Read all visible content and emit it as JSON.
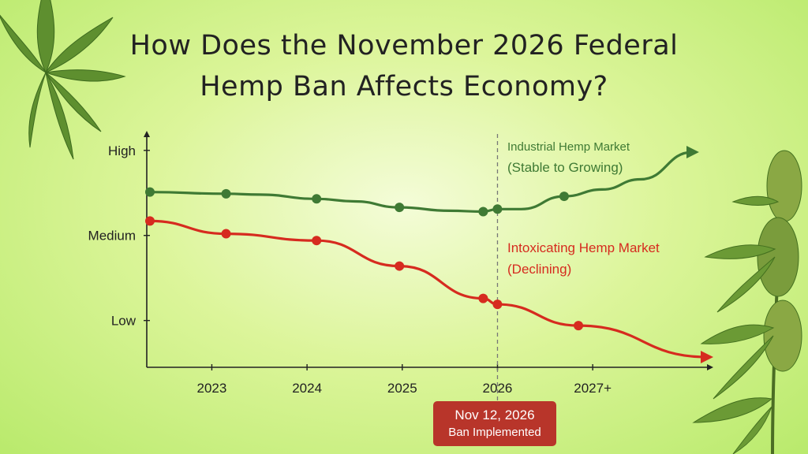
{
  "title_lines": [
    "How Does the November 2026 Federal",
    "Hemp Ban Affects Economy?"
  ],
  "annotation": {
    "date": "Nov 12, 2026",
    "label": "Ban Implemented"
  },
  "colors": {
    "industrial": "#3f7a34",
    "intoxicating": "#d62b1f",
    "axis": "#222222",
    "leaf": "#5e8f2f"
  },
  "decorations": [
    "hemp-leaf-icon",
    "hemp-plant-icon"
  ],
  "chart_data": {
    "type": "line",
    "title": "How Does the November 2026 Federal Hemp Ban Affects Economy?",
    "xlabel": "",
    "ylabel": "",
    "x_ticks": [
      "2023",
      "2024",
      "2025",
      "2026",
      "2027+"
    ],
    "x_tick_values": [
      2023,
      2024,
      2025,
      2026,
      2027
    ],
    "xlim": [
      2022.35,
      2028.25
    ],
    "y_ticks": [
      "High",
      "Medium",
      "Low"
    ],
    "y_tick_values": [
      3,
      2,
      1
    ],
    "ylim": [
      0.45,
      3.1
    ],
    "ban_x": 2026,
    "series": [
      {
        "name": "Industrial Hemp Market",
        "sublabel": "(Stable to Growing)",
        "color": "#3f7a34",
        "trend": "Stable to Growing",
        "x": [
          2022.35,
          2023.15,
          2023.5,
          2024.1,
          2024.5,
          2024.97,
          2025.5,
          2025.85,
          2026.0,
          2026.25,
          2026.7,
          2027.1,
          2027.5,
          2028.05
        ],
        "y": [
          2.51,
          2.49,
          2.48,
          2.43,
          2.4,
          2.33,
          2.29,
          2.28,
          2.31,
          2.31,
          2.46,
          2.54,
          2.66,
          2.98
        ],
        "markers": [
          {
            "x": 2022.35,
            "y": 2.51
          },
          {
            "x": 2023.15,
            "y": 2.49
          },
          {
            "x": 2024.1,
            "y": 2.43
          },
          {
            "x": 2024.97,
            "y": 2.33
          },
          {
            "x": 2025.85,
            "y": 2.28
          },
          {
            "x": 2026.0,
            "y": 2.31
          },
          {
            "x": 2026.7,
            "y": 2.46
          }
        ]
      },
      {
        "name": "Intoxicating Hemp Market",
        "sublabel": "(Declining)",
        "color": "#d62b1f",
        "trend": "Declining",
        "x": [
          2022.35,
          2023.15,
          2024.1,
          2024.97,
          2025.85,
          2026.0,
          2026.85,
          2028.2
        ],
        "y": [
          2.17,
          2.02,
          1.94,
          1.64,
          1.26,
          1.19,
          0.94,
          0.57
        ],
        "markers": [
          {
            "x": 2022.35,
            "y": 2.17
          },
          {
            "x": 2023.15,
            "y": 2.02
          },
          {
            "x": 2024.1,
            "y": 1.94
          },
          {
            "x": 2024.97,
            "y": 1.64
          },
          {
            "x": 2025.85,
            "y": 1.26
          },
          {
            "x": 2026.0,
            "y": 1.19
          },
          {
            "x": 2026.85,
            "y": 0.94
          }
        ]
      }
    ],
    "grid": false,
    "legend": "inline labels near lines"
  }
}
